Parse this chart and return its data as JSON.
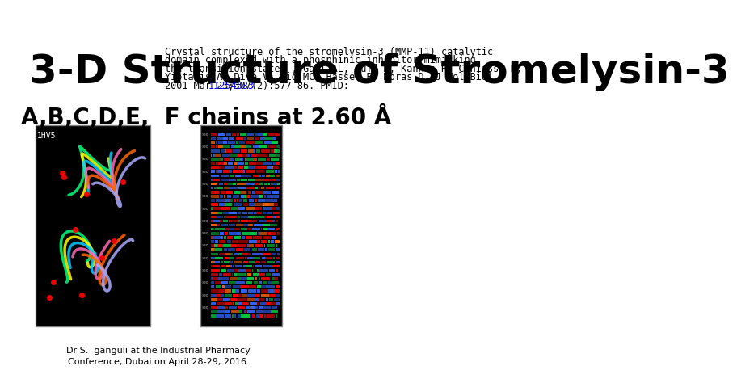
{
  "title": "3-D Structure of Stromelysin-3",
  "subtitle": "A,B,C,D,E,  F chains at 2.60 Å",
  "ref_line1": "Crystal structure of the stromelysin-3 (MMP-11) catalytic",
  "ref_line2": "domain complexed with a phosphinic inhibitor mimicking",
  "ref_line3": "the transition-state. , Gall AL, Ruff M, Kannan R, Cuniasse P,",
  "ref_line4": "Yiotakis A, Dive V, Rio MC, Basset P, Moras D, J Mol Biol",
  "ref_line5_before": "2001 Mar 23;307(2):577-86. PMID: ",
  "ref_link": "11254383",
  "footer_text": "Dr S.  ganguli at the Industrial Pharmacy\nConference, Dubai on April 28-29, 2016.",
  "label_1hv5": "1HV5",
  "background_color": "#ffffff",
  "title_fontsize": 36,
  "subtitle_fontsize": 20,
  "ref_fontsize": 8.5,
  "footer_fontsize": 8
}
